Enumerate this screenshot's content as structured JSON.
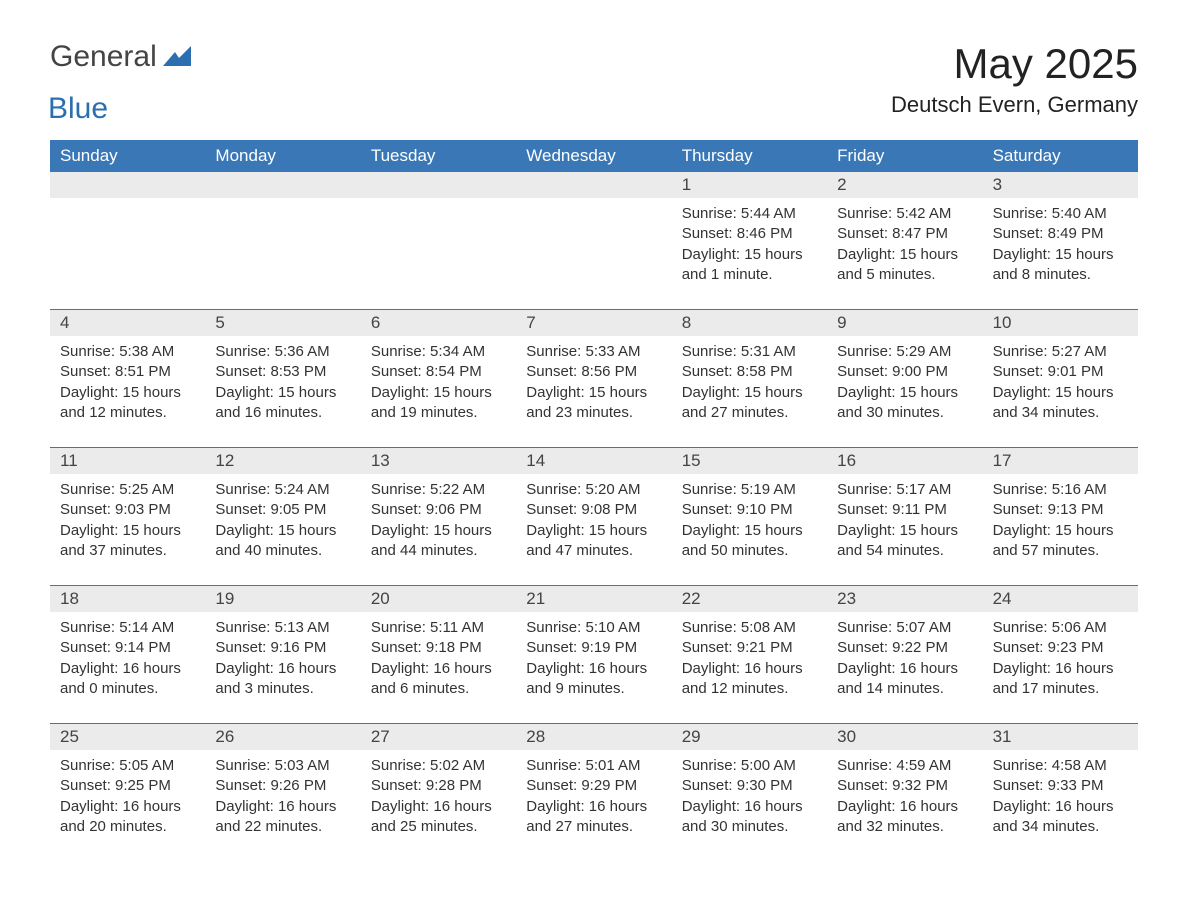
{
  "logo": {
    "text1": "General",
    "text2": "Blue",
    "mark_color": "#2b6fb0"
  },
  "title": "May 2025",
  "subtitle": "Deutsch Evern, Germany",
  "header_bg": "#3a77b7",
  "header_fg": "#ffffff",
  "daynum_bg": "#ebebeb",
  "weekdays": [
    "Sunday",
    "Monday",
    "Tuesday",
    "Wednesday",
    "Thursday",
    "Friday",
    "Saturday"
  ],
  "weeks": [
    [
      null,
      null,
      null,
      null,
      {
        "n": "1",
        "sunrise": "Sunrise: 5:44 AM",
        "sunset": "Sunset: 8:46 PM",
        "dl1": "Daylight: 15 hours",
        "dl2": "and 1 minute."
      },
      {
        "n": "2",
        "sunrise": "Sunrise: 5:42 AM",
        "sunset": "Sunset: 8:47 PM",
        "dl1": "Daylight: 15 hours",
        "dl2": "and 5 minutes."
      },
      {
        "n": "3",
        "sunrise": "Sunrise: 5:40 AM",
        "sunset": "Sunset: 8:49 PM",
        "dl1": "Daylight: 15 hours",
        "dl2": "and 8 minutes."
      }
    ],
    [
      {
        "n": "4",
        "sunrise": "Sunrise: 5:38 AM",
        "sunset": "Sunset: 8:51 PM",
        "dl1": "Daylight: 15 hours",
        "dl2": "and 12 minutes."
      },
      {
        "n": "5",
        "sunrise": "Sunrise: 5:36 AM",
        "sunset": "Sunset: 8:53 PM",
        "dl1": "Daylight: 15 hours",
        "dl2": "and 16 minutes."
      },
      {
        "n": "6",
        "sunrise": "Sunrise: 5:34 AM",
        "sunset": "Sunset: 8:54 PM",
        "dl1": "Daylight: 15 hours",
        "dl2": "and 19 minutes."
      },
      {
        "n": "7",
        "sunrise": "Sunrise: 5:33 AM",
        "sunset": "Sunset: 8:56 PM",
        "dl1": "Daylight: 15 hours",
        "dl2": "and 23 minutes."
      },
      {
        "n": "8",
        "sunrise": "Sunrise: 5:31 AM",
        "sunset": "Sunset: 8:58 PM",
        "dl1": "Daylight: 15 hours",
        "dl2": "and 27 minutes."
      },
      {
        "n": "9",
        "sunrise": "Sunrise: 5:29 AM",
        "sunset": "Sunset: 9:00 PM",
        "dl1": "Daylight: 15 hours",
        "dl2": "and 30 minutes."
      },
      {
        "n": "10",
        "sunrise": "Sunrise: 5:27 AM",
        "sunset": "Sunset: 9:01 PM",
        "dl1": "Daylight: 15 hours",
        "dl2": "and 34 minutes."
      }
    ],
    [
      {
        "n": "11",
        "sunrise": "Sunrise: 5:25 AM",
        "sunset": "Sunset: 9:03 PM",
        "dl1": "Daylight: 15 hours",
        "dl2": "and 37 minutes."
      },
      {
        "n": "12",
        "sunrise": "Sunrise: 5:24 AM",
        "sunset": "Sunset: 9:05 PM",
        "dl1": "Daylight: 15 hours",
        "dl2": "and 40 minutes."
      },
      {
        "n": "13",
        "sunrise": "Sunrise: 5:22 AM",
        "sunset": "Sunset: 9:06 PM",
        "dl1": "Daylight: 15 hours",
        "dl2": "and 44 minutes."
      },
      {
        "n": "14",
        "sunrise": "Sunrise: 5:20 AM",
        "sunset": "Sunset: 9:08 PM",
        "dl1": "Daylight: 15 hours",
        "dl2": "and 47 minutes."
      },
      {
        "n": "15",
        "sunrise": "Sunrise: 5:19 AM",
        "sunset": "Sunset: 9:10 PM",
        "dl1": "Daylight: 15 hours",
        "dl2": "and 50 minutes."
      },
      {
        "n": "16",
        "sunrise": "Sunrise: 5:17 AM",
        "sunset": "Sunset: 9:11 PM",
        "dl1": "Daylight: 15 hours",
        "dl2": "and 54 minutes."
      },
      {
        "n": "17",
        "sunrise": "Sunrise: 5:16 AM",
        "sunset": "Sunset: 9:13 PM",
        "dl1": "Daylight: 15 hours",
        "dl2": "and 57 minutes."
      }
    ],
    [
      {
        "n": "18",
        "sunrise": "Sunrise: 5:14 AM",
        "sunset": "Sunset: 9:14 PM",
        "dl1": "Daylight: 16 hours",
        "dl2": "and 0 minutes."
      },
      {
        "n": "19",
        "sunrise": "Sunrise: 5:13 AM",
        "sunset": "Sunset: 9:16 PM",
        "dl1": "Daylight: 16 hours",
        "dl2": "and 3 minutes."
      },
      {
        "n": "20",
        "sunrise": "Sunrise: 5:11 AM",
        "sunset": "Sunset: 9:18 PM",
        "dl1": "Daylight: 16 hours",
        "dl2": "and 6 minutes."
      },
      {
        "n": "21",
        "sunrise": "Sunrise: 5:10 AM",
        "sunset": "Sunset: 9:19 PM",
        "dl1": "Daylight: 16 hours",
        "dl2": "and 9 minutes."
      },
      {
        "n": "22",
        "sunrise": "Sunrise: 5:08 AM",
        "sunset": "Sunset: 9:21 PM",
        "dl1": "Daylight: 16 hours",
        "dl2": "and 12 minutes."
      },
      {
        "n": "23",
        "sunrise": "Sunrise: 5:07 AM",
        "sunset": "Sunset: 9:22 PM",
        "dl1": "Daylight: 16 hours",
        "dl2": "and 14 minutes."
      },
      {
        "n": "24",
        "sunrise": "Sunrise: 5:06 AM",
        "sunset": "Sunset: 9:23 PM",
        "dl1": "Daylight: 16 hours",
        "dl2": "and 17 minutes."
      }
    ],
    [
      {
        "n": "25",
        "sunrise": "Sunrise: 5:05 AM",
        "sunset": "Sunset: 9:25 PM",
        "dl1": "Daylight: 16 hours",
        "dl2": "and 20 minutes."
      },
      {
        "n": "26",
        "sunrise": "Sunrise: 5:03 AM",
        "sunset": "Sunset: 9:26 PM",
        "dl1": "Daylight: 16 hours",
        "dl2": "and 22 minutes."
      },
      {
        "n": "27",
        "sunrise": "Sunrise: 5:02 AM",
        "sunset": "Sunset: 9:28 PM",
        "dl1": "Daylight: 16 hours",
        "dl2": "and 25 minutes."
      },
      {
        "n": "28",
        "sunrise": "Sunrise: 5:01 AM",
        "sunset": "Sunset: 9:29 PM",
        "dl1": "Daylight: 16 hours",
        "dl2": "and 27 minutes."
      },
      {
        "n": "29",
        "sunrise": "Sunrise: 5:00 AM",
        "sunset": "Sunset: 9:30 PM",
        "dl1": "Daylight: 16 hours",
        "dl2": "and 30 minutes."
      },
      {
        "n": "30",
        "sunrise": "Sunrise: 4:59 AM",
        "sunset": "Sunset: 9:32 PM",
        "dl1": "Daylight: 16 hours",
        "dl2": "and 32 minutes."
      },
      {
        "n": "31",
        "sunrise": "Sunrise: 4:58 AM",
        "sunset": "Sunset: 9:33 PM",
        "dl1": "Daylight: 16 hours",
        "dl2": "and 34 minutes."
      }
    ]
  ]
}
